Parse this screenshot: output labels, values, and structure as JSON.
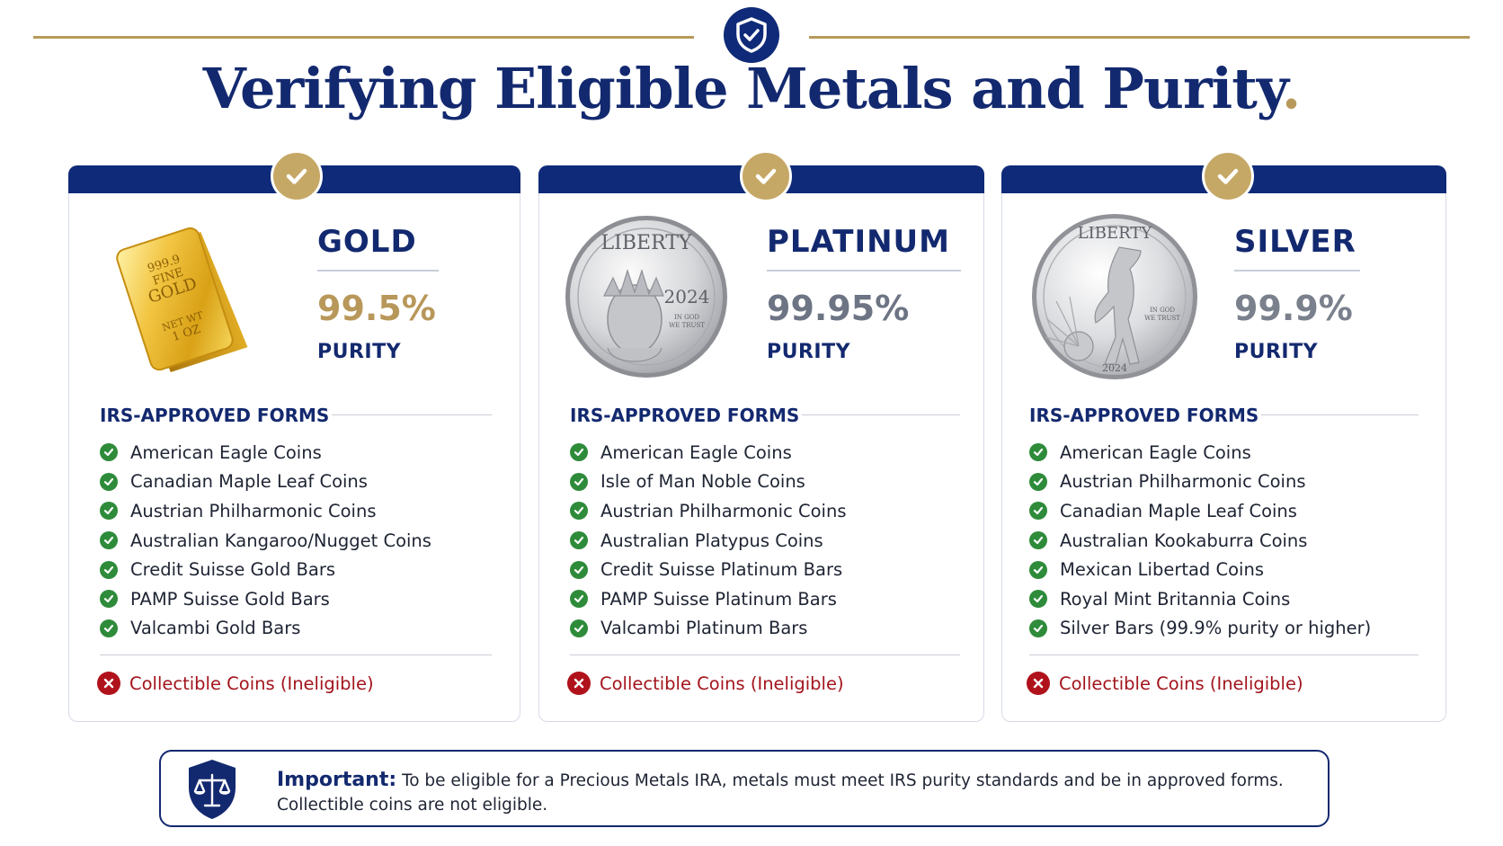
{
  "header": {
    "title": "Verifying Eligible Metals and Purity",
    "title_dot": ".",
    "badge_icon": "shield-check-icon"
  },
  "colors": {
    "navy": "#13296F",
    "gold_accent": "#B79A5B",
    "check_green": "#2E8B3A",
    "error_red": "#A3141C"
  },
  "cards": [
    {
      "metal": "GOLD",
      "purity": "99.5%",
      "purity_label": "PURITY",
      "purity_color": "#B8985A",
      "image": "gold-bar",
      "bar_stamp": [
        "999.9",
        "FINE",
        "GOLD",
        "NET WT",
        "1 OZ"
      ],
      "forms_heading": "IRS-APPROVED FORMS",
      "forms": [
        "American Eagle Coins",
        "Canadian Maple Leaf Coins",
        "Austrian Philharmonic Coins",
        "Australian Kangaroo/Nugget Coins",
        "Credit Suisse Gold Bars",
        "PAMP Suisse Gold Bars",
        "Valcambi Gold Bars"
      ],
      "ineligible": "Collectible Coins (Ineligible)"
    },
    {
      "metal": "PLATINUM",
      "purity": "99.95%",
      "purity_label": "PURITY",
      "purity_color": "#6D7484",
      "image": "platinum-coin",
      "coin_text": [
        "LIBERTY",
        "2024",
        "IN GOD",
        "WE TRUST"
      ],
      "forms_heading": "IRS-APPROVED FORMS",
      "forms": [
        "American Eagle Coins",
        "Isle of Man Noble Coins",
        "Austrian Philharmonic Coins",
        "Australian Platypus Coins",
        "Credit Suisse Platinum Bars",
        "PAMP Suisse Platinum Bars",
        "Valcambi Platinum Bars"
      ],
      "ineligible": "Collectible Coins (Ineligible)"
    },
    {
      "metal": "SILVER",
      "purity": "99.9%",
      "purity_label": "PURITY",
      "purity_color": "#7A808C",
      "image": "silver-coin",
      "coin_text": [
        "LIBERTY",
        "IN GOD",
        "WE TRUST",
        "2024"
      ],
      "forms_heading": "IRS-APPROVED FORMS",
      "forms": [
        "American Eagle Coins",
        "Austrian Philharmonic Coins",
        "Canadian Maple Leaf Coins",
        "Australian Kookaburra Coins",
        "Mexican Libertad Coins",
        "Royal Mint Britannia Coins",
        "Silver Bars (99.9% purity or higher)"
      ],
      "ineligible": "Collectible Coins (Ineligible)"
    }
  ],
  "notice": {
    "icon": "shield-scales-icon",
    "lead": "Important:",
    "text": "To be eligible for a Precious Metals IRA, metals must meet IRS purity standards and be in approved forms. Collectible coins are not eligible."
  }
}
